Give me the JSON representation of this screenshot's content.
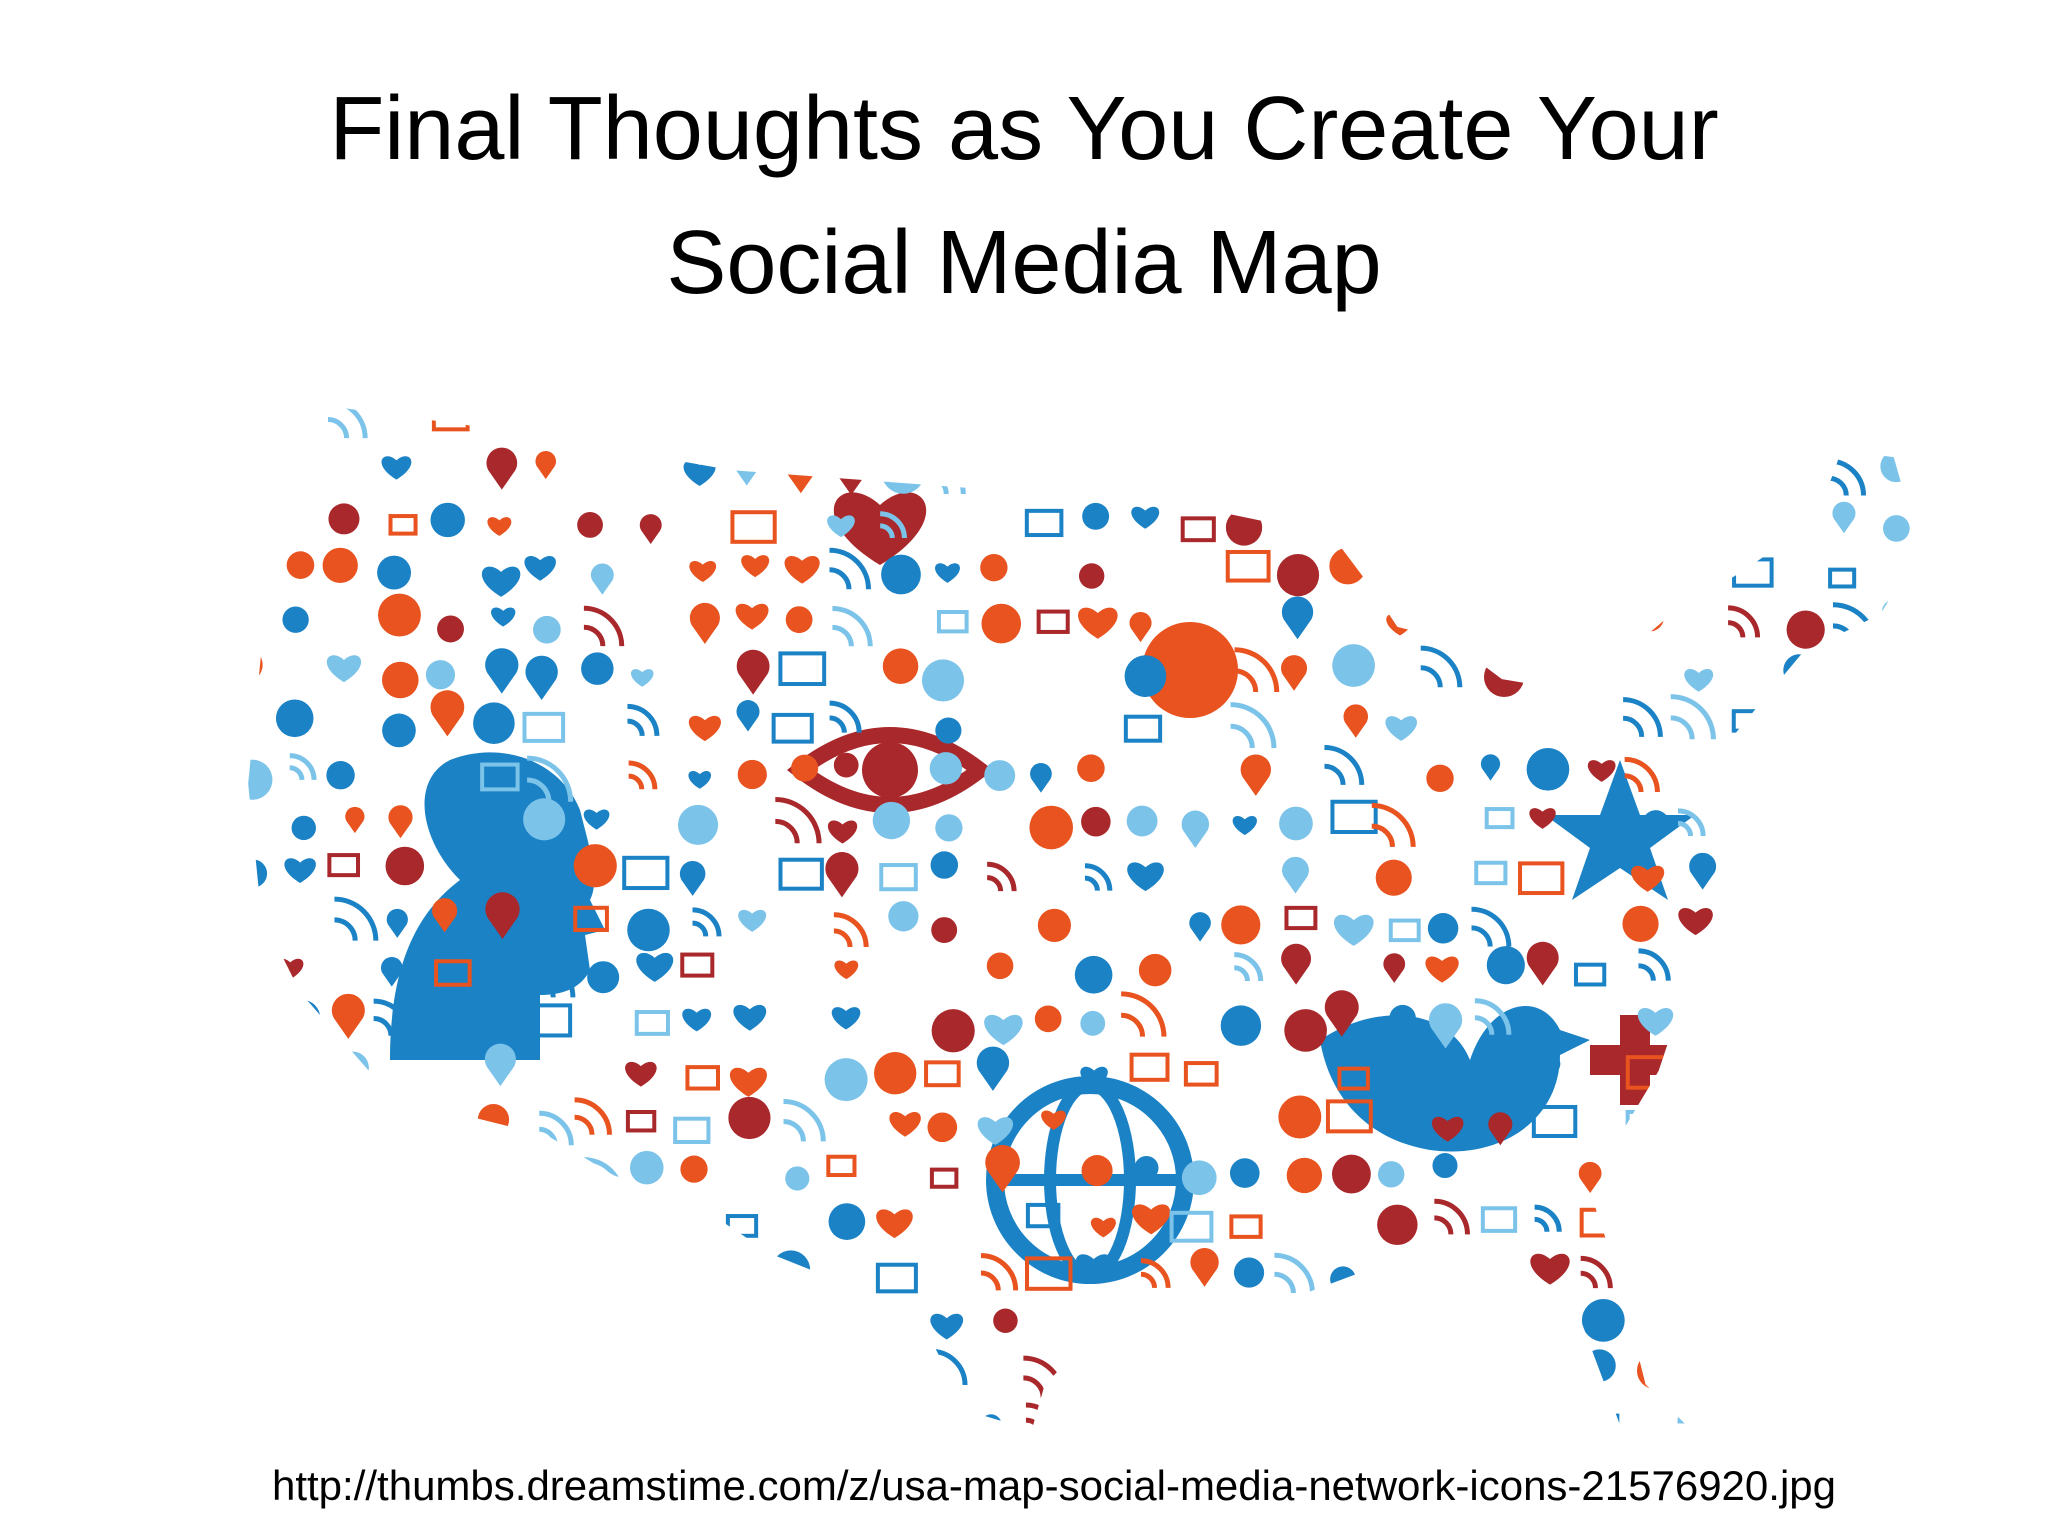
{
  "slide": {
    "title": "Final Thoughts as You Create Your Social Media Map",
    "source_url": "http://thumbs.dreamstime.com/z/usa-map-social-media-network-icons-21576920.jpg"
  }
}
